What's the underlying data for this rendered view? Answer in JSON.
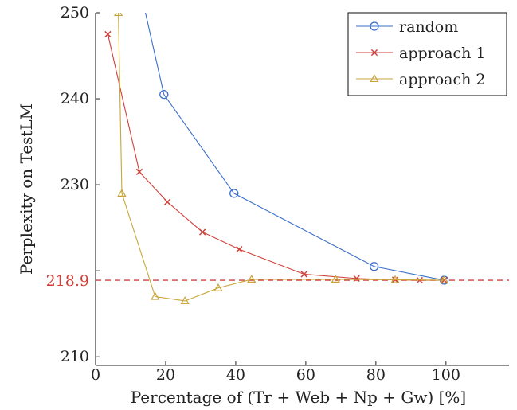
{
  "chart_data": {
    "type": "line",
    "xlabel": "Percentage of (Tr + Web + Np + Gw) [%]",
    "ylabel": "Perplexity on TestLM",
    "xlim": [
      0,
      118
    ],
    "ylim": [
      209,
      250
    ],
    "xticks": [
      0,
      20,
      40,
      60,
      80,
      100
    ],
    "yticks": [
      210,
      220,
      230,
      240,
      250
    ],
    "ytick_labels": [
      "210",
      "",
      "230",
      "240",
      "250"
    ],
    "grid": false,
    "legend_position": "top-right",
    "reference_line": {
      "y": 218.9,
      "label": "218.9",
      "color": "#d0403a",
      "style": "dashed"
    },
    "series": [
      {
        "name": "random",
        "marker": "circle",
        "color": "#3b6fc9",
        "points": [
          [
            6,
            270
          ],
          [
            12,
            254
          ],
          [
            19.5,
            240.5
          ],
          [
            39.5,
            229
          ],
          [
            79.5,
            220.5
          ],
          [
            99.5,
            218.9
          ]
        ]
      },
      {
        "name": "approach 1",
        "marker": "x",
        "color": "#d0403a",
        "points": [
          [
            3.5,
            247.5
          ],
          [
            12.5,
            231.5
          ],
          [
            20.5,
            228
          ],
          [
            30.5,
            224.5
          ],
          [
            41,
            222.5
          ],
          [
            59.5,
            219.6
          ],
          [
            74.5,
            219.1
          ],
          [
            85.5,
            218.95
          ],
          [
            92.5,
            218.9
          ],
          [
            99.5,
            218.9
          ]
        ]
      },
      {
        "name": "approach 2",
        "marker": "triangle",
        "color": "#c8a63a",
        "points": [
          [
            6.5,
            250
          ],
          [
            7.5,
            229
          ],
          [
            17,
            217
          ],
          [
            25.5,
            216.5
          ],
          [
            35,
            218
          ],
          [
            44.5,
            219
          ],
          [
            68.5,
            219
          ],
          [
            85.5,
            218.95
          ],
          [
            99.5,
            218.9
          ]
        ]
      }
    ]
  }
}
